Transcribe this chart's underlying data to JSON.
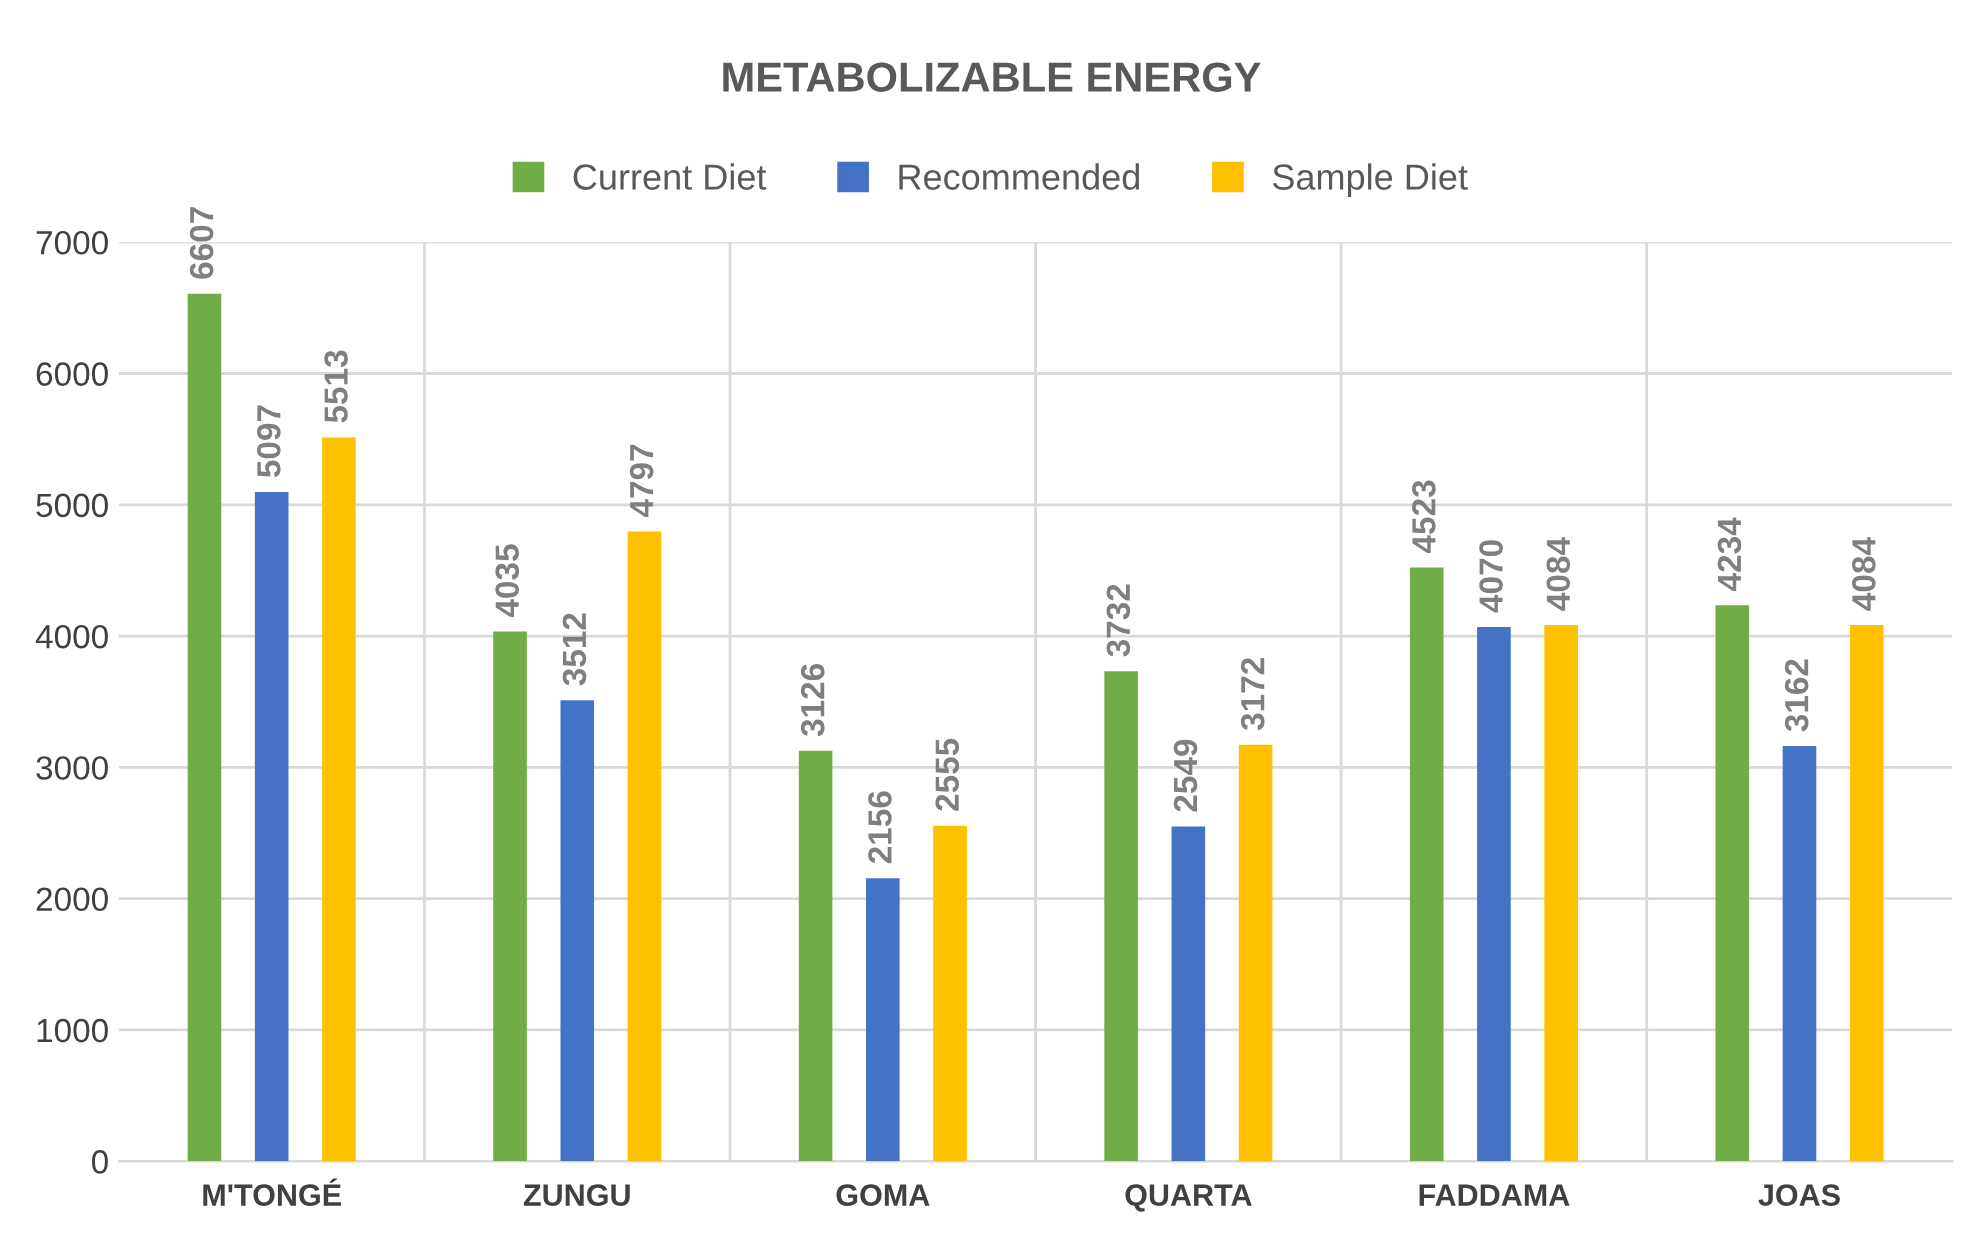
{
  "chart_data": {
    "type": "bar",
    "title": "METABOLIZABLE ENERGY",
    "categories": [
      "M'TONGÉ",
      "ZUNGU",
      "GOMA",
      "QUARTA",
      "FADDAMA",
      "JOAS"
    ],
    "series": [
      {
        "name": "Current Diet",
        "color": "#70ad47",
        "values": [
          6607,
          4035,
          3126,
          3732,
          4523,
          4234
        ]
      },
      {
        "name": "Recommended",
        "color": "#4472c4",
        "values": [
          5097,
          3512,
          2156,
          2549,
          4070,
          3162
        ]
      },
      {
        "name": "Sample Diet",
        "color": "#ffc000",
        "values": [
          5513,
          4797,
          2555,
          3172,
          4084,
          4084
        ]
      }
    ],
    "ylim": [
      0,
      7000
    ],
    "yticks": [
      0,
      1000,
      2000,
      3000,
      4000,
      5000,
      6000,
      7000
    ],
    "grid": true,
    "legend": "top",
    "data_labels": true
  }
}
